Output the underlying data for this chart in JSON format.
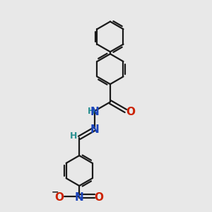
{
  "background_color": "#e8e8e8",
  "bond_color": "#1a1a1a",
  "N_color": "#1a44bb",
  "O_color": "#cc2200",
  "H_color": "#2a9090",
  "line_width": 1.6,
  "figsize": [
    3.0,
    3.0
  ],
  "dpi": 100,
  "xlim": [
    0,
    10
  ],
  "ylim": [
    0,
    10
  ]
}
